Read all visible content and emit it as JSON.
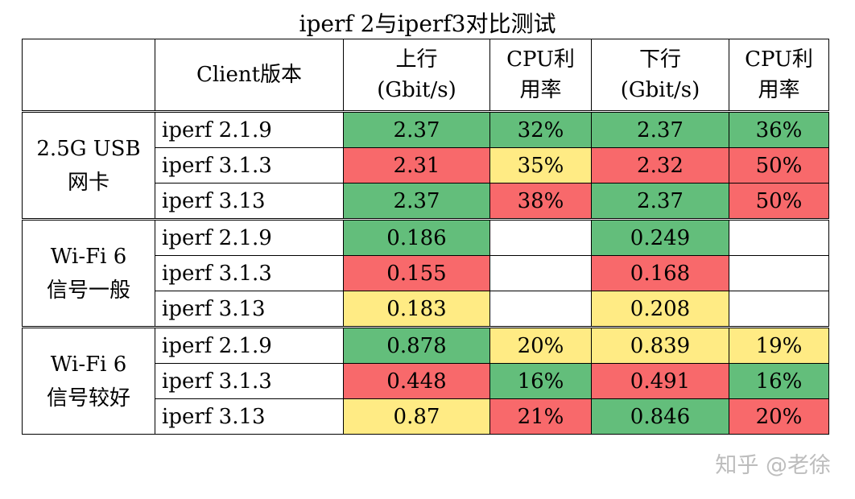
{
  "title": "iperf 2与iperf3对比测试",
  "headers": {
    "group": "",
    "client": "Client版本",
    "up_l1": "上行",
    "up_l2": "(Gbit/s)",
    "cpu1_l1": "CPU利",
    "cpu1_l2": "用率",
    "down_l1": "下行",
    "down_l2": "(Gbit/s)",
    "cpu2_l1": "CPU利",
    "cpu2_l2": "用率"
  },
  "groups": [
    {
      "name_l1": "2.5G USB",
      "name_l2": "网卡",
      "rows": [
        {
          "version": "iperf 2.1.9",
          "up": "2.37",
          "cpu_up": "32%",
          "down": "2.37",
          "cpu_down": "36%"
        },
        {
          "version": "iperf 3.1.3",
          "up": "2.31",
          "cpu_up": "35%",
          "down": "2.32",
          "cpu_down": "50%"
        },
        {
          "version": "iperf 3.13",
          "up": "2.37",
          "cpu_up": "38%",
          "down": "2.37",
          "cpu_down": "50%"
        }
      ]
    },
    {
      "name_l1": "Wi-Fi 6",
      "name_l2": "信号一般",
      "rows": [
        {
          "version": "iperf 2.1.9",
          "up": "0.186",
          "cpu_up": "",
          "down": "0.249",
          "cpu_down": ""
        },
        {
          "version": "iperf 3.1.3",
          "up": "0.155",
          "cpu_up": "",
          "down": "0.168",
          "cpu_down": ""
        },
        {
          "version": "iperf 3.13",
          "up": "0.183",
          "cpu_up": "",
          "down": "0.208",
          "cpu_down": ""
        }
      ]
    },
    {
      "name_l1": "Wi-Fi 6",
      "name_l2": "信号较好",
      "rows": [
        {
          "version": "iperf 2.1.9",
          "up": "0.878",
          "cpu_up": "20%",
          "down": "0.839",
          "cpu_down": "19%"
        },
        {
          "version": "iperf 3.1.3",
          "up": "0.448",
          "cpu_up": "16%",
          "down": "0.491",
          "cpu_down": "16%"
        },
        {
          "version": "iperf 3.13",
          "up": "0.87",
          "cpu_up": "21%",
          "down": "0.846",
          "cpu_down": "20%"
        }
      ]
    }
  ],
  "colors": {
    "green": "#63be7b",
    "red": "#f8696b",
    "yellow": "#ffeb84"
  },
  "watermark": "知乎 @老徐"
}
